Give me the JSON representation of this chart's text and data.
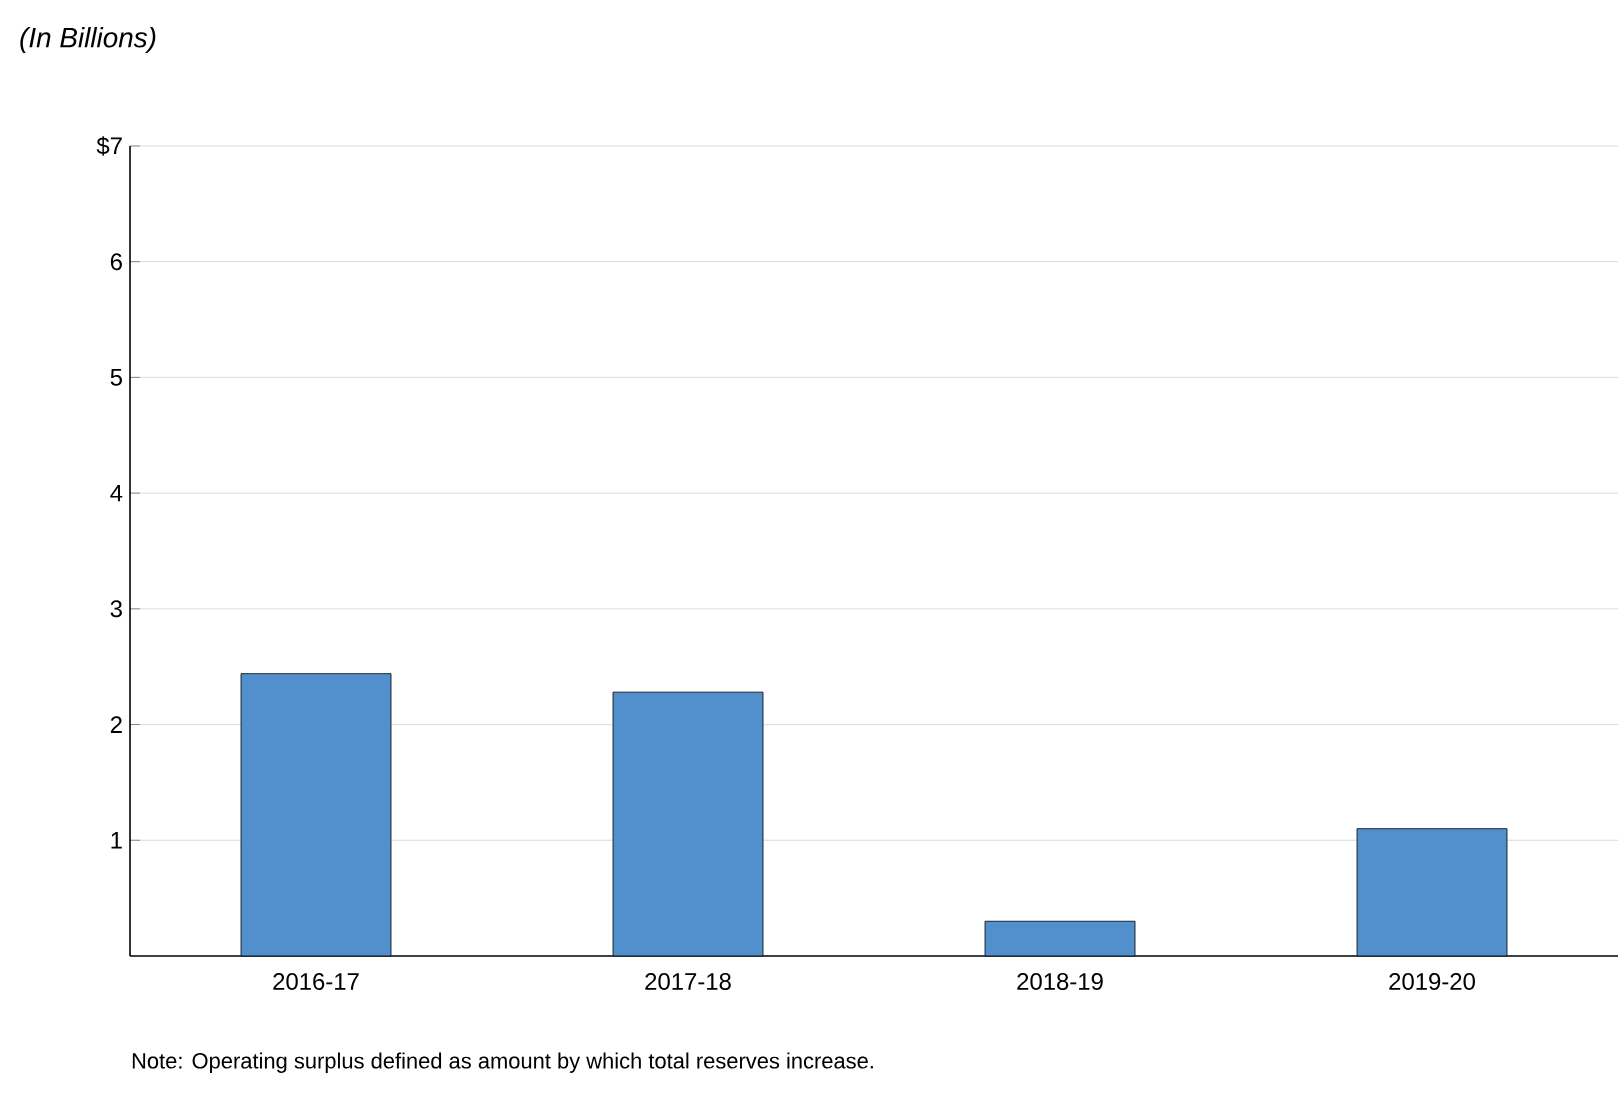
{
  "chart_data": {
    "type": "bar",
    "title": "(In Billions)",
    "categories": [
      "2016-17",
      "2017-18",
      "2018-19",
      "2019-20"
    ],
    "values": [
      2.44,
      2.28,
      0.3,
      1.1
    ],
    "color": "#5190cc",
    "ylim": [
      0,
      7
    ],
    "yticks": [
      1,
      2,
      3,
      4,
      5,
      6,
      {
        "value": 7,
        "label": "$7"
      }
    ],
    "grid": "y",
    "annotations": [
      "Note: Operating surplus defined as amount by which total reserves increase."
    ]
  }
}
